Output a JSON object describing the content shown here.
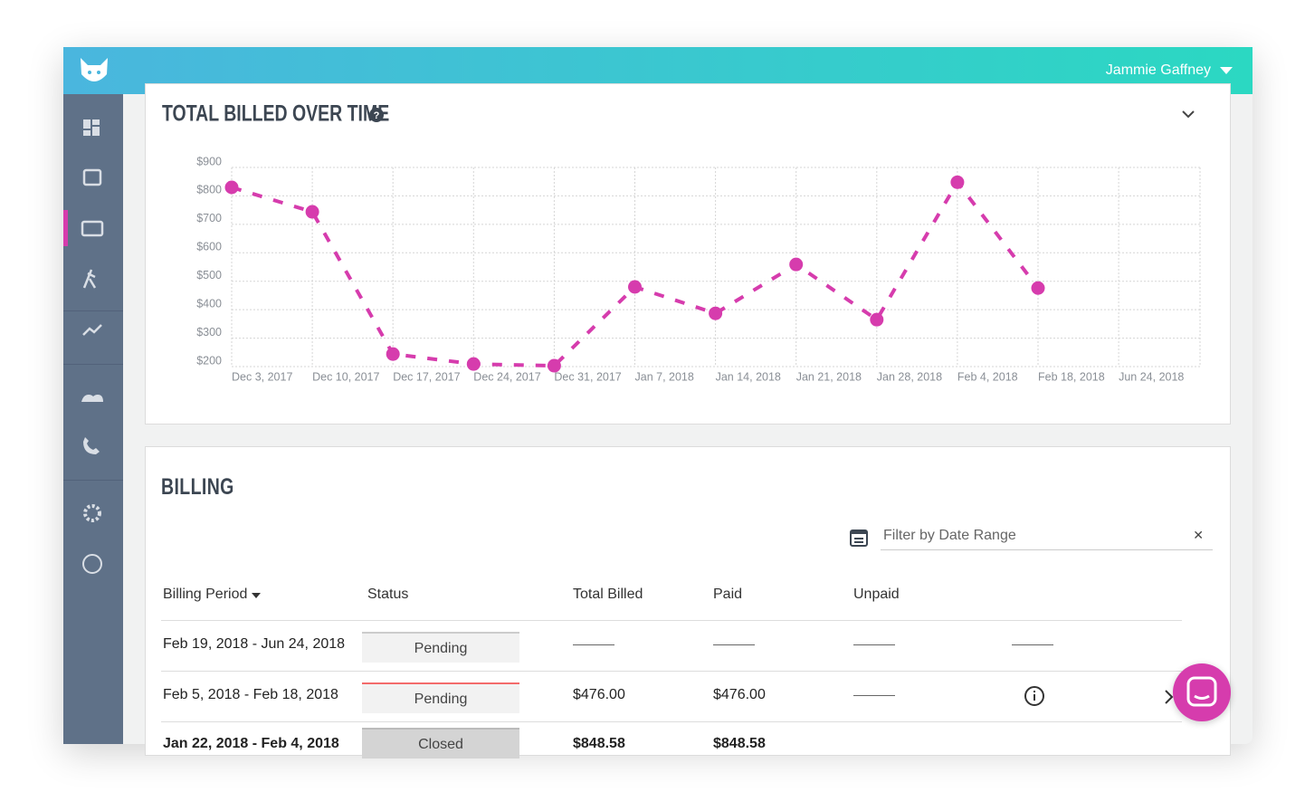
{
  "header": {
    "user_name": "Jammie Gaffney"
  },
  "chart_data": {
    "type": "line",
    "title": "TOTAL BILLED OVER TIME",
    "categories": [
      "Dec 3, 2017",
      "Dec 10, 2017",
      "Dec 17, 2017",
      "Dec 24, 2017",
      "Dec 31, 2017",
      "Jan 7, 2018",
      "Jan 14, 2018",
      "Jan 21, 2018",
      "Jan 28, 2018",
      "Feb 4, 2018",
      "Feb 18, 2018",
      "Jun 24, 2018"
    ],
    "values": [
      830,
      744,
      244,
      209,
      203,
      480,
      387,
      559,
      365,
      848,
      476,
      null
    ],
    "color": "#d63cad",
    "ylim": [
      200,
      900
    ],
    "yticks": [
      {
        "value": 200,
        "label": "$200"
      },
      {
        "value": 300,
        "label": "$300"
      },
      {
        "value": 400,
        "label": "$400"
      },
      {
        "value": 500,
        "label": "$500"
      },
      {
        "value": 600,
        "label": "$600"
      },
      {
        "value": 700,
        "label": "$700"
      },
      {
        "value": 800,
        "label": "$800"
      },
      {
        "value": 900,
        "label": "$900"
      }
    ],
    "grid": true
  },
  "billing": {
    "title": "BILLING",
    "filter_placeholder": "Filter by Date Range",
    "columns": [
      "Billing Period",
      "Status",
      "Total Billed",
      "Paid",
      "Unpaid"
    ],
    "rows": [
      [
        "Feb 19, 2018 - Jun 24, 2018",
        "Pending"
      ],
      [
        "Feb 5, 2018 - Feb 18, 2018",
        "Pending",
        "$476.00",
        "$476.00"
      ],
      [
        "Jan 22, 2018 - Feb 4, 2018",
        "Closed",
        "$848.58",
        "$848.58"
      ]
    ]
  }
}
